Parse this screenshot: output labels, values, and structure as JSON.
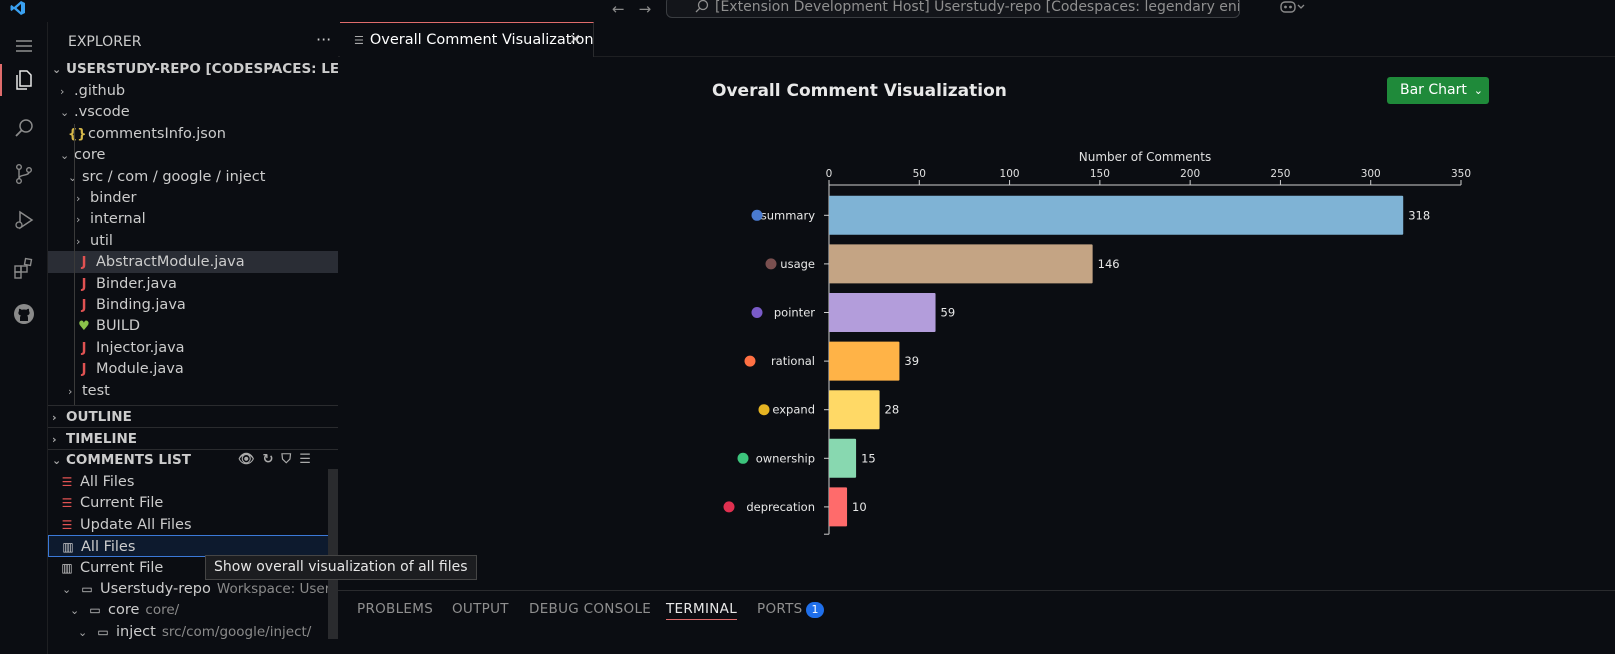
{
  "titlebar": {
    "command_center": "[Extension Development Host] Userstudy-repo [Codespaces: legendary enigma]",
    "back_icon": "arrow-left-icon",
    "forward_icon": "arrow-right-icon"
  },
  "activitybar": {
    "items": [
      "menu-icon",
      "explorer-icon",
      "search-icon",
      "source-control-icon",
      "run-debug-icon",
      "extensions-icon",
      "github-icon"
    ]
  },
  "explorer": {
    "title": "EXPLORER",
    "more": "···",
    "root": "USERSTUDY-REPO [CODESPACES: LE...",
    "tree": [
      {
        "label": ".github",
        "chev": "›",
        "indent": 1
      },
      {
        "label": ".vscode",
        "chev": "⌄",
        "indent": 1
      },
      {
        "label": "commentsInfo.json",
        "icon": "{}",
        "indent": 2,
        "kind": "json"
      },
      {
        "label": "core",
        "chev": "⌄",
        "indent": 1
      },
      {
        "label": "src / com / google / inject",
        "chev": "⌄",
        "indent": 2
      },
      {
        "label": "binder",
        "chev": "›",
        "indent": 3
      },
      {
        "label": "internal",
        "chev": "›",
        "indent": 3
      },
      {
        "label": "util",
        "chev": "›",
        "indent": 3
      },
      {
        "label": "AbstractModule.java",
        "icon": "J",
        "indent": 3,
        "kind": "java",
        "selected": true
      },
      {
        "label": "Binder.java",
        "icon": "J",
        "indent": 3,
        "kind": "java"
      },
      {
        "label": "Binding.java",
        "icon": "J",
        "indent": 3,
        "kind": "java"
      },
      {
        "label": "BUILD",
        "icon": "♥",
        "indent": 3,
        "kind": "build"
      },
      {
        "label": "Injector.java",
        "icon": "J",
        "indent": 3,
        "kind": "java"
      },
      {
        "label": "Module.java",
        "icon": "J",
        "indent": 3,
        "kind": "java"
      },
      {
        "label": "test",
        "chev": "›",
        "indent": 2
      }
    ],
    "outline": "OUTLINE",
    "timeline": "TIMELINE",
    "comments_list": {
      "title": "COMMENTS LIST",
      "items": [
        {
          "label": "All Files",
          "icon": "list"
        },
        {
          "label": "Current File",
          "icon": "list"
        },
        {
          "label": "Update All Files",
          "icon": "list"
        },
        {
          "label": "All Files",
          "icon": "bar",
          "focused": true
        },
        {
          "label": "Current File",
          "icon": "bar"
        },
        {
          "label": "Userstudy-repo",
          "desc": "Workspace: User...",
          "icon": "folder",
          "indent": 1
        },
        {
          "label": "core",
          "desc": "core/",
          "icon": "folder",
          "indent": 2
        },
        {
          "label": "inject",
          "desc": "src/com/google/inject/",
          "icon": "folder",
          "indent": 3
        }
      ]
    },
    "tooltip": "Show overall visualization of all files"
  },
  "editor": {
    "tab_label": "Overall Comment Visualization",
    "close": "✕",
    "title": "Overall Comment Visualization",
    "chart_type_select": "Bar Chart"
  },
  "chart_data": {
    "type": "bar",
    "orientation": "horizontal",
    "xlabel": "Number of Comments",
    "xlim": [
      0,
      350
    ],
    "ticks": [
      0,
      50,
      100,
      150,
      200,
      250,
      300,
      350
    ],
    "categories": [
      "summary",
      "usage",
      "pointer",
      "rational",
      "expand",
      "ownership",
      "deprecation"
    ],
    "values": [
      318,
      146,
      59,
      39,
      28,
      15,
      10
    ],
    "colors": [
      "#7fb3d5",
      "#c4a484",
      "#b39ddb",
      "#ffb347",
      "#ffd966",
      "#88d8b0",
      "#ff6b6b"
    ],
    "dot_colors": [
      "#4a7bd0",
      "#7a4f4f",
      "#7a5bc8",
      "#ff7043",
      "#e6b422",
      "#3cc47c",
      "#e03050"
    ]
  },
  "panel": {
    "tabs": [
      "PROBLEMS",
      "OUTPUT",
      "DEBUG CONSOLE",
      "TERMINAL",
      "PORTS"
    ],
    "active": "TERMINAL",
    "ports_badge": "1"
  }
}
